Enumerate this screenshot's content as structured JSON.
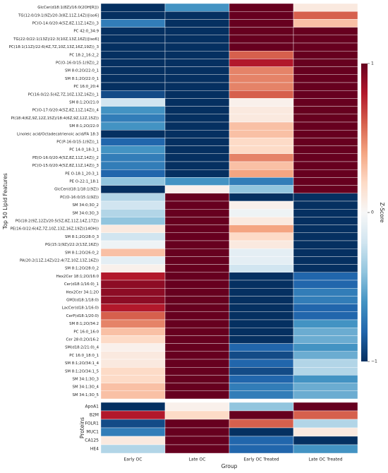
{
  "chart_data": {
    "type": "heatmap",
    "x": [
      "Early OC",
      "Late OC",
      "Early OC Treated",
      "Late OC Treated"
    ],
    "xlabel": "Group",
    "colorbar_label": "Z-Score",
    "clim": [
      -1,
      1
    ],
    "cticks": [
      {
        "value": 1,
        "label": "1"
      },
      {
        "value": 0,
        "label": "0"
      },
      {
        "value": -1,
        "label": "−1"
      }
    ],
    "colors": [
      "#053061",
      "#2166ac",
      "#4393c3",
      "#92c5de",
      "#d1e5f0",
      "#f7f7f7",
      "#fddbc7",
      "#f4a582",
      "#d6604d",
      "#b2182b",
      "#67001f"
    ],
    "groups": [
      {
        "label": "Top 50 Lipid Features",
        "rows": [
          "GlcCer(d18:1(8Z)/16:0(2OH[R]))",
          "TG(12:0/19:1(9Z)/20:3(8Z,11Z,14Z))[iso6]",
          "PC(O-14:0/20:4(5Z,8Z,11Z,14Z))_3",
          "PC 42:0_34:9",
          "TG(22:0/22:1(13Z)/22:3(10Z,13Z,16Z))[iso6]",
          "PC(18:1(11Z)/22:6(4Z,7Z,10Z,13Z,16Z,19Z))_3",
          "PC 18:2_16:2_2",
          "PC(O-16:0/15:1(9Z))_2",
          "SM 8:0;2O/22:0_1",
          "SM 8:1;2O/22:0_1",
          "PC 16:0_20:4",
          "PC(16:0/22:5(4Z,7Z,10Z,13Z,16Z))_1",
          "SM 8:1;2O/21:0",
          "PC(O-17:0/20:4(5Z,8Z,11Z,14Z))_4",
          "PI(18:4(6Z,9Z,12Z,15Z)/18:4(6Z,9Z,12Z,15Z))",
          "SM 8:1;2O/22:0",
          "Linoleic acid/Octadecatrienoic acid/FA 18:3",
          "PC(P-16:0/15:1(9Z))_1",
          "PC 14:0_18:3_1",
          "PE(O-16:0/20:4(5Z,8Z,11Z,14Z))_2",
          "PC(O-15:0/20:4(5Z,8Z,11Z,14Z))_3",
          "PE O-18:1_20:3_1",
          "PE O-22:1_18:1",
          "GlcCer(d18:1/18:1(9Z))",
          "PC(O-16:0/15:1(9Z))",
          "SM 34:0;3O_2",
          "SM 34:0;3O_3",
          "PG(18:2(9Z,12Z)/20:5(5Z,8Z,11Z,14Z,17Z))",
          "PE(16:0/22:6(4Z,7Z,10Z,13Z,16Z,19Z)(14OH))",
          "SM 8:1;2O/28:0_3",
          "PG(15:1(9Z)/22:2(13Z,16Z))",
          "SM 8:1;2O/26:0_2",
          "PA(20:2(11Z,14Z)/22:4(7Z,10Z,13Z,16Z))",
          "SM 8:1;2O/28:0_2",
          "Hex2Cer 18:1;2O/16:0",
          "Cer(d18:1/16:0)_1",
          "Hex2Cer 34:1;2O",
          "GM3(d18:1/18:0)",
          "LacCer(d18:1/16:0)",
          "CerP(d18:1/20:0)",
          "SM 8:1;2O/34:2",
          "PC 16:0_16:0",
          "Cer 28:0;2O/16:2",
          "SM(d18:2/21:0)_4",
          "PC 16:0_18:0_1",
          "SM 8:1;2O/34:1_4",
          "SM 8:1;2O/34:1_5",
          "SM 34:1;3O_3",
          "SM 34:1;3O_4",
          "SM 34:1;3O_5"
        ],
        "values": [
          [
            -1,
            -0.6,
            1,
            0.1
          ],
          [
            -1,
            -1,
            1,
            0.6
          ],
          [
            -0.7,
            -1,
            1,
            0.3
          ],
          [
            -1,
            -1,
            1,
            1
          ],
          [
            -1,
            -1,
            1,
            1
          ],
          [
            -1,
            -1,
            1,
            1
          ],
          [
            -1,
            -1,
            0.6,
            1
          ],
          [
            -1,
            -1,
            0.8,
            1
          ],
          [
            -1,
            -1,
            0.5,
            1
          ],
          [
            -1,
            -1,
            0.5,
            1
          ],
          [
            -1,
            -1,
            0.5,
            1
          ],
          [
            -0.9,
            -1,
            0.6,
            1
          ],
          [
            -0.2,
            -1,
            0.05,
            1
          ],
          [
            -0.6,
            -1,
            0.1,
            1
          ],
          [
            -0.7,
            -1,
            0.1,
            1
          ],
          [
            -0.6,
            -1,
            0.3,
            1
          ],
          [
            -1,
            -1,
            0.3,
            1
          ],
          [
            -0.8,
            -1,
            0.2,
            1
          ],
          [
            -0.6,
            -1,
            0.2,
            1
          ],
          [
            -0.7,
            -1,
            0.5,
            1
          ],
          [
            -0.7,
            -1,
            0.3,
            1
          ],
          [
            -0.8,
            -1,
            0.4,
            1
          ],
          [
            -0.4,
            -0.6,
            -0.7,
            1
          ],
          [
            -1,
            0.05,
            -0.4,
            1
          ],
          [
            -0.3,
            1,
            -1,
            -1
          ],
          [
            -0.2,
            1,
            0.05,
            -1
          ],
          [
            -0.3,
            1,
            -0.05,
            -1
          ],
          [
            -0.4,
            1,
            0.1,
            -1
          ],
          [
            0.1,
            1,
            0.4,
            -1
          ],
          [
            -0.2,
            1,
            0.2,
            -1
          ],
          [
            -0.05,
            1,
            0.1,
            -1
          ],
          [
            0.3,
            1,
            -0.1,
            -1
          ],
          [
            -0.1,
            1,
            -0.1,
            -1
          ],
          [
            0.05,
            1,
            -0.2,
            -1
          ],
          [
            0.8,
            1,
            -1,
            -0.8
          ],
          [
            0.9,
            1,
            -1,
            -0.8
          ],
          [
            0.9,
            1,
            -1,
            -0.7
          ],
          [
            0.9,
            1,
            -1,
            -0.7
          ],
          [
            0.8,
            1,
            -1,
            -0.8
          ],
          [
            0.6,
            1,
            -1,
            -0.8
          ],
          [
            0.5,
            1,
            -1,
            -0.6
          ],
          [
            0.3,
            1,
            -1,
            -0.5
          ],
          [
            0.2,
            1,
            -1,
            -0.5
          ],
          [
            0.05,
            1,
            -0.8,
            -0.6
          ],
          [
            0.1,
            1,
            -0.9,
            -0.5
          ],
          [
            0.1,
            1,
            -0.8,
            -0.3
          ],
          [
            0.2,
            1,
            -0.9,
            -0.3
          ],
          [
            0.2,
            1,
            -0.8,
            -0.6
          ],
          [
            0.3,
            1,
            -0.7,
            -0.5
          ],
          [
            0.3,
            1,
            -0.7,
            -0.5
          ]
        ]
      },
      {
        "label": "Proteins",
        "rows": [
          "ApoA1",
          "B2M",
          "FOLR1",
          "MUC1",
          "CA125",
          "HE4"
        ],
        "values": [
          [
            -1,
            0.05,
            -0.4,
            1
          ],
          [
            0.8,
            0.2,
            1,
            0.6
          ],
          [
            -0.9,
            1,
            0.6,
            -0.3
          ],
          [
            -0.7,
            1,
            -1,
            0.1
          ],
          [
            0.1,
            1,
            -0.8,
            -1
          ],
          [
            -0.3,
            1,
            -0.8,
            -0.6
          ]
        ]
      }
    ]
  }
}
